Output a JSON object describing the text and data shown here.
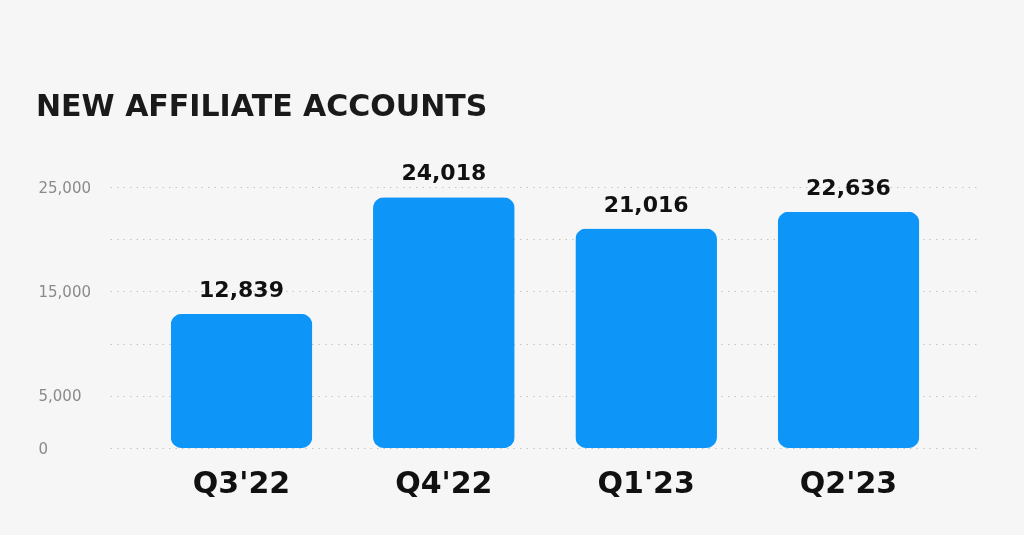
{
  "chart_data": {
    "type": "bar",
    "title": "NEW AFFILIATE ACCOUNTS",
    "categories": [
      "Q3'22",
      "Q4'22",
      "Q1'23",
      "Q2'23"
    ],
    "values": [
      12839,
      24018,
      21016,
      22636
    ],
    "value_labels": [
      "12,839",
      "24,018",
      "21,016",
      "22,636"
    ],
    "color": "#0d96f8",
    "ylim": [
      0,
      25000
    ],
    "yticks": [
      0,
      {
        "value": 5000,
        "label": "5,000"
      },
      {
        "value": 10000,
        "label": null
      },
      {
        "value": 15000,
        "label": "15,000"
      },
      {
        "value": 20000,
        "label": null
      },
      {
        "value": 25000,
        "label": "25,000"
      }
    ],
    "grid": "y"
  }
}
